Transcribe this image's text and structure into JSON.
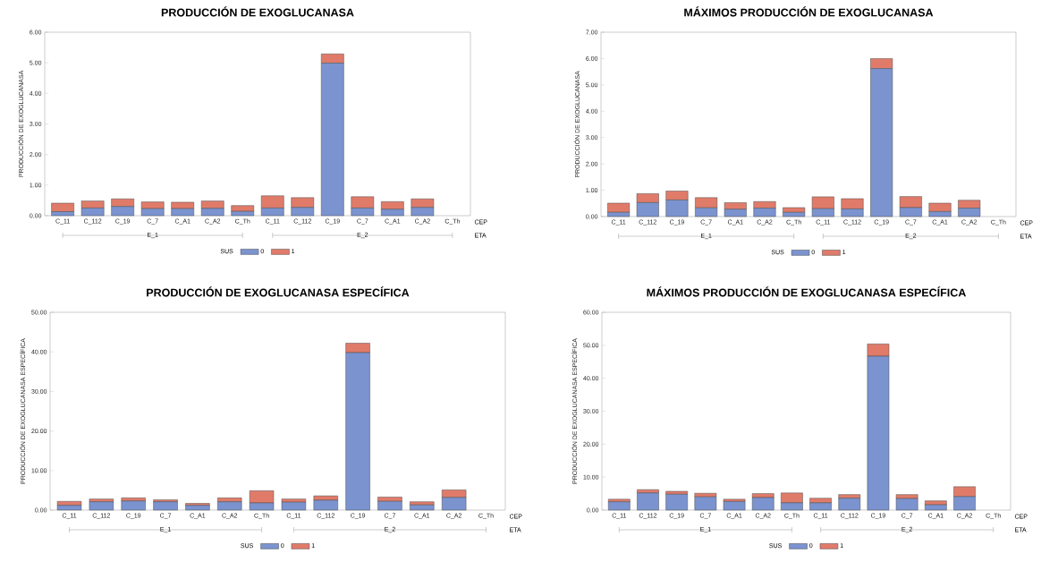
{
  "chart_data": [
    {
      "type": "bar",
      "title": "PRODUCCIÓN DE EXOGLUCANASA",
      "ylabel": "PRODUCCIÓN DE EXOGLUCANASA",
      "xlabel": "CEP",
      "legend_title": "SUS",
      "legend": "bottom",
      "stacked": true,
      "categories": [
        "C_11",
        "C_112",
        "C_19",
        "C_7",
        "C_A1",
        "C_A2",
        "C_Th",
        "C_11",
        "C_112",
        "C_19",
        "C_7",
        "C_A1",
        "C_A2",
        "C_Th"
      ],
      "series": [
        {
          "name": "0",
          "color": "#7b93cf",
          "values": [
            0.13,
            0.25,
            0.3,
            0.23,
            0.23,
            0.24,
            0.14,
            0.25,
            0.27,
            4.99,
            0.25,
            0.21,
            0.27,
            null
          ]
        },
        {
          "name": "1",
          "color": "#e07b6a",
          "values": [
            0.28,
            0.23,
            0.25,
            0.22,
            0.21,
            0.24,
            0.19,
            0.4,
            0.32,
            0.3,
            0.37,
            0.25,
            0.28,
            null
          ]
        }
      ],
      "ylim": [
        0,
        6
      ],
      "yticks": [
        {
          "value": 0,
          "label": "0.00"
        },
        {
          "value": 1,
          "label": "1.00"
        },
        {
          "value": 2,
          "label": "2.00"
        },
        {
          "value": 3,
          "label": "3.00"
        },
        {
          "value": 4,
          "label": "4.00"
        },
        {
          "value": 5,
          "label": "5.00"
        },
        {
          "value": 6,
          "label": "6.00"
        }
      ],
      "annotations": [
        "ETA",
        "E_1",
        "E_2"
      ]
    },
    {
      "type": "bar",
      "title": "MÁXIMOS PRODUCCIÓN DE EXOGLUCANASA",
      "ylabel": "PRODUCCIÓN DE EXOGLUCANASA",
      "xlabel": "CEP",
      "legend_title": "SUS",
      "legend": "bottom",
      "stacked": true,
      "categories": [
        "C_11",
        "C_112",
        "C_19",
        "C_7",
        "C_A1",
        "C_A2",
        "C_Th",
        "C_11",
        "C_112",
        "C_19",
        "C_7",
        "C_A1",
        "C_A2",
        "C_Th"
      ],
      "series": [
        {
          "name": "0",
          "color": "#7b93cf",
          "values": [
            0.16,
            0.53,
            0.63,
            0.33,
            0.28,
            0.32,
            0.16,
            0.3,
            0.29,
            5.62,
            0.34,
            0.19,
            0.32,
            null
          ]
        },
        {
          "name": "1",
          "color": "#e07b6a",
          "values": [
            0.35,
            0.34,
            0.34,
            0.39,
            0.25,
            0.25,
            0.18,
            0.45,
            0.39,
            0.38,
            0.42,
            0.32,
            0.3,
            null
          ]
        }
      ],
      "ylim": [
        0,
        7
      ],
      "yticks": [
        {
          "value": 0,
          "label": "0.00"
        },
        {
          "value": 1,
          "label": "1.00"
        },
        {
          "value": 2,
          "label": "2.00"
        },
        {
          "value": 3,
          "label": "3.00"
        },
        {
          "value": 4,
          "label": "4.00"
        },
        {
          "value": 5,
          "label": "5.00"
        },
        {
          "value": 6,
          "label": "6.00"
        },
        {
          "value": 7,
          "label": "7.00"
        }
      ],
      "annotations": [
        "ETA",
        "E_1",
        "E_2"
      ]
    },
    {
      "type": "bar",
      "title": "PRODUCCIÓN DE EXOGLUCANASA ESPECÍFICA",
      "ylabel": "PRODUCCIÓN DE EXOGLUCANASA ESPECÍFICA",
      "xlabel": "CEP",
      "legend_title": "SUS",
      "legend": "bottom",
      "stacked": true,
      "categories": [
        "C_11",
        "C_112",
        "C_19",
        "C_7",
        "C_A1",
        "C_A2",
        "C_Th",
        "C_11",
        "C_112",
        "C_19",
        "C_7",
        "C_A1",
        "C_A2",
        "C_Th"
      ],
      "series": [
        {
          "name": "0",
          "color": "#7b93cf",
          "values": [
            1.2,
            2.1,
            2.3,
            2.1,
            1.2,
            2.1,
            1.8,
            2.0,
            2.5,
            39.8,
            2.2,
            1.3,
            3.2,
            null
          ]
        },
        {
          "name": "1",
          "color": "#e07b6a",
          "values": [
            1.0,
            0.7,
            0.8,
            0.5,
            0.5,
            1.0,
            3.1,
            0.8,
            1.1,
            2.4,
            1.1,
            0.8,
            1.9,
            null
          ]
        }
      ],
      "ylim": [
        0,
        50
      ],
      "yticks": [
        {
          "value": 0,
          "label": "0.00"
        },
        {
          "value": 10,
          "label": "10.00"
        },
        {
          "value": 20,
          "label": "20.00"
        },
        {
          "value": 30,
          "label": "30.00"
        },
        {
          "value": 40,
          "label": "40.00"
        },
        {
          "value": 50,
          "label": "50.00"
        }
      ],
      "annotations": [
        "ETA",
        "E_1",
        "E_2"
      ]
    },
    {
      "type": "bar",
      "title": "MÁXIMOS PRODUCCIÓN DE EXOGLUCANASA ESPECÍFICA",
      "ylabel": "PRODUCCIÓN DE EXOGLUCANASA ESPECÍFICA",
      "xlabel": "CEP",
      "legend_title": "SUS",
      "legend": "bottom",
      "stacked": true,
      "categories": [
        "C_11",
        "C_112",
        "C_19",
        "C_7",
        "C_A1",
        "C_A2",
        "C_Th",
        "C_11",
        "C_112",
        "C_19",
        "C_7",
        "C_A1",
        "C_A2",
        "C_Th"
      ],
      "series": [
        {
          "name": "0",
          "color": "#7b93cf",
          "values": [
            2.5,
            5.2,
            4.8,
            4.0,
            2.6,
            3.8,
            2.2,
            2.2,
            3.6,
            46.7,
            3.5,
            1.6,
            4.1,
            null
          ]
        },
        {
          "name": "1",
          "color": "#e07b6a",
          "values": [
            0.8,
            1.0,
            0.9,
            1.1,
            0.7,
            1.2,
            3.0,
            1.4,
            1.1,
            3.7,
            1.2,
            1.2,
            3.0,
            null
          ]
        }
      ],
      "ylim": [
        0,
        60
      ],
      "yticks": [
        {
          "value": 0,
          "label": "0.00"
        },
        {
          "value": 10,
          "label": "10.00"
        },
        {
          "value": 20,
          "label": "20.00"
        },
        {
          "value": 30,
          "label": "30.00"
        },
        {
          "value": 40,
          "label": "40.00"
        },
        {
          "value": 50,
          "label": "50.00"
        },
        {
          "value": 60,
          "label": "60.00"
        }
      ],
      "annotations": [
        "ETA",
        "E_1",
        "E_2"
      ]
    }
  ]
}
